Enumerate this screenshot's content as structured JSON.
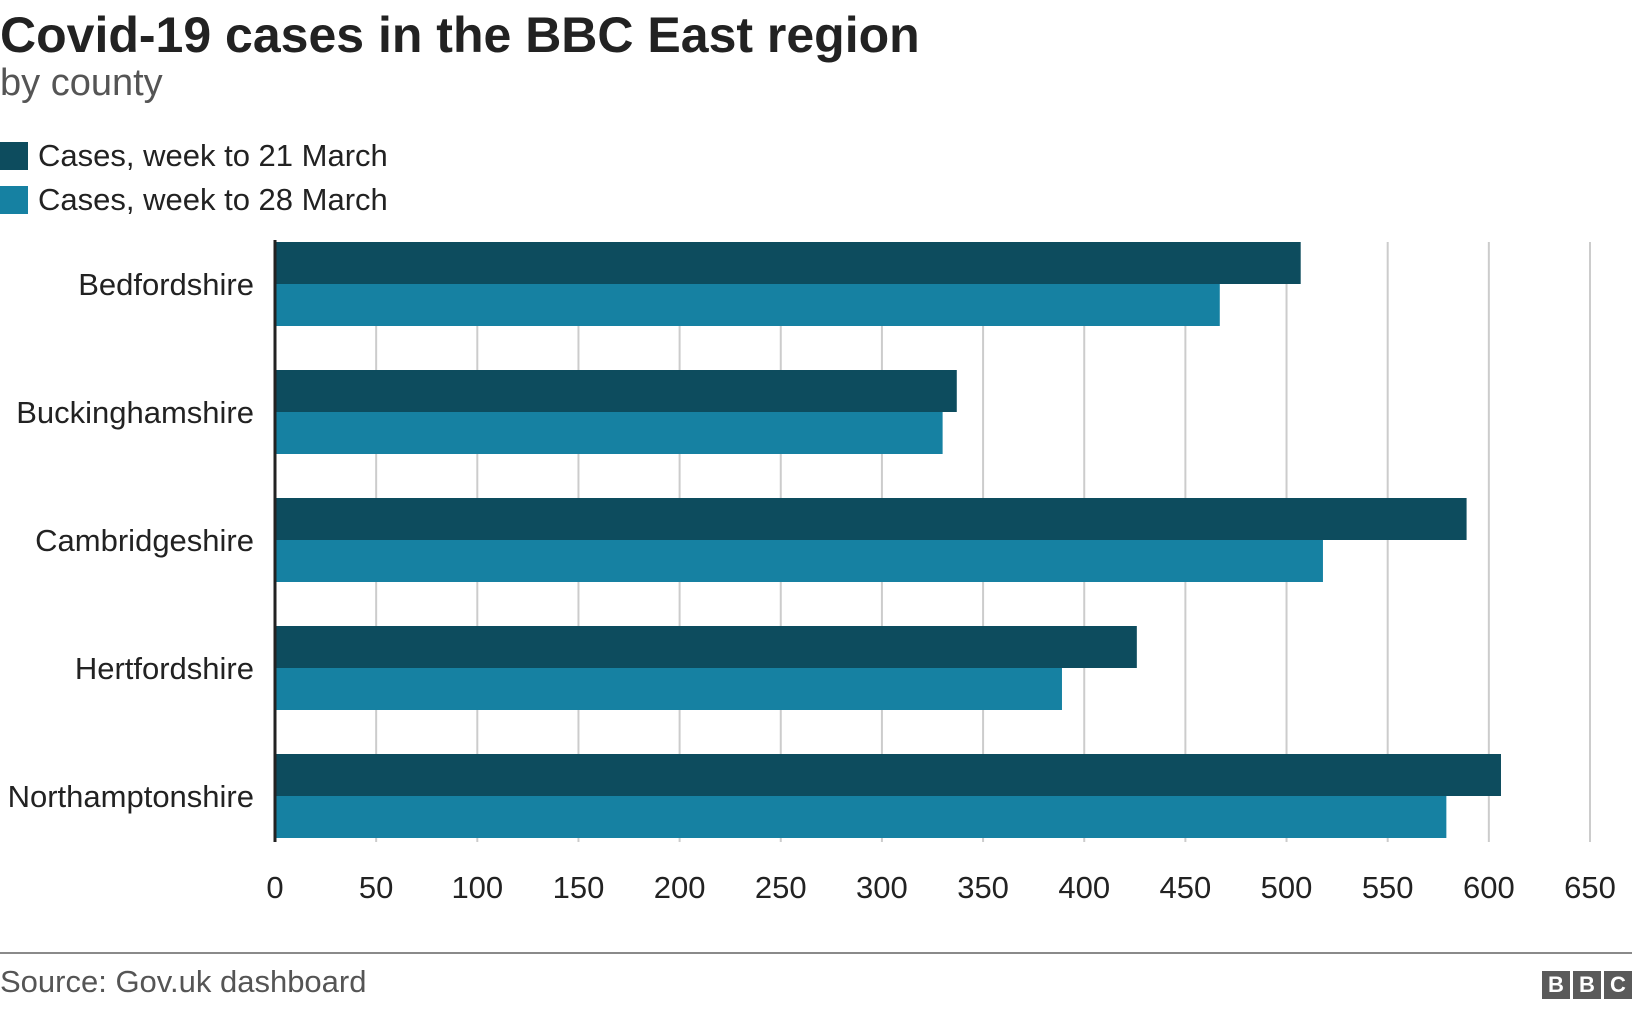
{
  "chart_data": {
    "type": "bar",
    "orientation": "horizontal",
    "title": "Covid-19 cases in the BBC East region",
    "subtitle": "by county",
    "categories": [
      "Bedfordshire",
      "Buckinghamshire",
      "Cambridgeshire",
      "Hertfordshire",
      "Northamptonshire"
    ],
    "series": [
      {
        "name": "Cases, week to 21 March",
        "color": "#0d4c5e",
        "values": [
          507,
          337,
          589,
          426,
          606
        ]
      },
      {
        "name": "Cases, week to 28 March",
        "color": "#1681a2",
        "values": [
          467,
          330,
          518,
          389,
          579
        ]
      }
    ],
    "xlim": [
      0,
      650
    ],
    "xticks": [
      "0",
      "50",
      "100",
      "150",
      "200",
      "250",
      "300",
      "350",
      "400",
      "450",
      "500",
      "550",
      "600",
      "650"
    ],
    "grid": true,
    "legend_position": "top-left",
    "source": "Source: Gov.uk dashboard"
  },
  "logo": {
    "letters": [
      "B",
      "B",
      "C"
    ]
  }
}
